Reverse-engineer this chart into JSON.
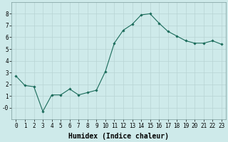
{
  "x": [
    0,
    1,
    2,
    3,
    4,
    5,
    6,
    7,
    8,
    9,
    10,
    11,
    12,
    13,
    14,
    15,
    16,
    17,
    18,
    19,
    20,
    21,
    22,
    23
  ],
  "y": [
    2.7,
    1.9,
    1.8,
    -0.3,
    1.1,
    1.1,
    1.6,
    1.1,
    1.3,
    1.5,
    3.1,
    5.5,
    6.6,
    7.1,
    7.9,
    8.0,
    7.2,
    6.5,
    6.1,
    5.7,
    5.5,
    5.5,
    5.7,
    5.4
  ],
  "line_color": "#1a6b5a",
  "marker": "D",
  "marker_size": 1.8,
  "linewidth": 0.8,
  "xlabel": "Humidex (Indice chaleur)",
  "xlabel_fontsize": 7.5,
  "ylim": [
    -1,
    9
  ],
  "xlim": [
    -0.5,
    23.5
  ],
  "yticks": [
    0,
    1,
    2,
    3,
    4,
    5,
    6,
    7,
    8
  ],
  "ytick_labels": [
    "-0",
    "1",
    "2",
    "3",
    "4",
    "5",
    "6",
    "7",
    "8"
  ],
  "xtick_labels": [
    "0",
    "1",
    "2",
    "3",
    "4",
    "5",
    "6",
    "7",
    "8",
    "9",
    "10",
    "11",
    "12",
    "13",
    "14",
    "15",
    "16",
    "17",
    "18",
    "19",
    "20",
    "21",
    "22",
    "23"
  ],
  "background_color": "#ceeaea",
  "grid_color": "#b8d4d4",
  "tick_fontsize": 5.5,
  "xlabel_fontsize_val": 7.0
}
